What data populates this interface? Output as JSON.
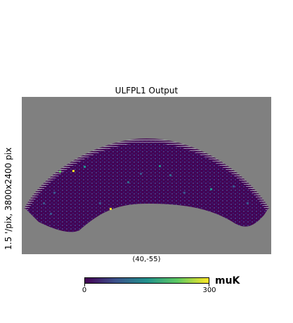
{
  "figure": {
    "title": "ULFPL1 Output",
    "ylabel": "1.5 '/pix,  3800x2400 pix",
    "center_label": "(40,-55)"
  },
  "map": {
    "background_color": "#808080",
    "colormap": "viridis",
    "low_color": "#440154",
    "high_color": "#fde725"
  },
  "colorbar": {
    "min_label": "0",
    "max_label": "300",
    "unit": "muK",
    "stops": [
      "#440154",
      "#3b528b",
      "#21918c",
      "#5ec962",
      "#fde725"
    ]
  }
}
